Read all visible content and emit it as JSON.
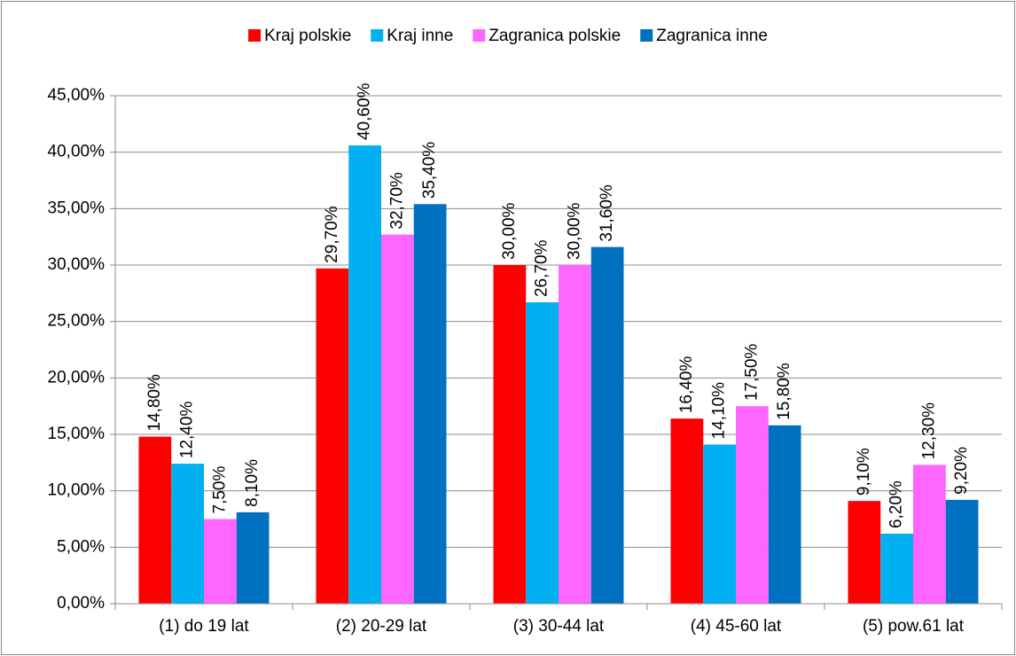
{
  "chart_data": {
    "type": "bar",
    "categories": [
      "(1) do 19 lat",
      "(2) 20-29 lat",
      "(3) 30-44 lat",
      "(4) 45-60 lat",
      "(5) pow.61 lat"
    ],
    "series": [
      {
        "name": "Kraj polskie",
        "color": "#ff0000",
        "values": [
          14.8,
          29.7,
          30.0,
          16.4,
          9.1
        ],
        "value_labels": [
          "14,80%",
          "29,70%",
          "30,00%",
          "16,40%",
          "9,10%"
        ]
      },
      {
        "name": "Kraj inne",
        "color": "#00b0f0",
        "values": [
          12.4,
          40.6,
          26.7,
          14.1,
          6.2
        ],
        "value_labels": [
          "12,40%",
          "40,60%",
          "26,70%",
          "14,10%",
          "6,20%"
        ]
      },
      {
        "name": "Zagranica polskie",
        "color": "#ff66ff",
        "values": [
          7.5,
          32.7,
          30.0,
          17.5,
          12.3
        ],
        "value_labels": [
          "7,50%",
          "32,70%",
          "30,00%",
          "17,50%",
          "12,30%"
        ]
      },
      {
        "name": "Zagranica inne",
        "color": "#0070c0",
        "values": [
          8.1,
          35.4,
          31.6,
          15.8,
          9.2
        ],
        "value_labels": [
          "8,10%",
          "35,40%",
          "31,60%",
          "15,80%",
          "9,20%"
        ]
      }
    ],
    "ylim": [
      0,
      45
    ],
    "yticks": [
      {
        "value": 0,
        "label": "0,00%"
      },
      {
        "value": 5,
        "label": "5,00%"
      },
      {
        "value": 10,
        "label": "10,00%"
      },
      {
        "value": 15,
        "label": "15,00%"
      },
      {
        "value": 20,
        "label": "20,00%"
      },
      {
        "value": 25,
        "label": "25,00%"
      },
      {
        "value": 30,
        "label": "30,00%"
      },
      {
        "value": 35,
        "label": "35,00%"
      },
      {
        "value": 40,
        "label": "40,00%"
      },
      {
        "value": 45,
        "label": "45,00%"
      }
    ],
    "grid": true,
    "legend": "top"
  }
}
